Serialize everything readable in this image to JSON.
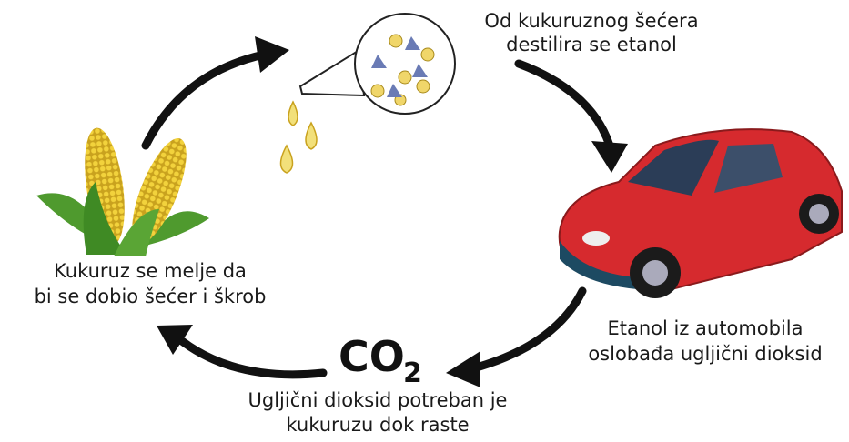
{
  "steps": {
    "distill": {
      "lines": [
        "Od kukuruznog šećera",
        "destilira se etanol"
      ]
    },
    "car": {
      "lines": [
        "Etanol iz automobila",
        "oslobađa ugljični dioksid"
      ]
    },
    "co2": {
      "symbol": "CO",
      "subscript": "2",
      "lines": [
        "Ugljični dioksid potreban je",
        "kukuruzu dok raste"
      ]
    },
    "corn": {
      "lines": [
        "Kukuruz se melje da",
        "bi se dobio šećer i škrob"
      ]
    }
  }
}
